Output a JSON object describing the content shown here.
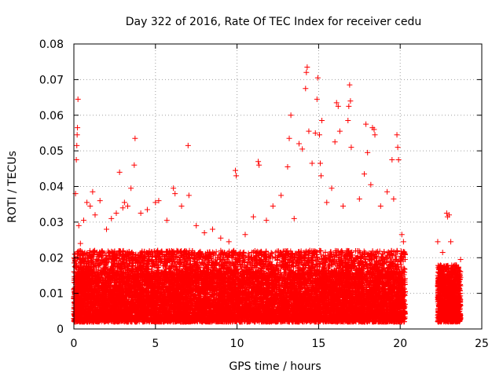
{
  "chart_data": {
    "type": "scatter",
    "title": "Day 322 of 2016, Rate Of TEC Index for receiver cedu",
    "xlabel": "GPS time / hours",
    "ylabel": "ROTI / TECUs",
    "xlim": [
      0,
      25
    ],
    "ylim": [
      0,
      0.08
    ],
    "xticks": [
      "0",
      "5",
      "10",
      "15",
      "20",
      "25"
    ],
    "yticks": [
      "0",
      "0.01",
      "0.02",
      "0.03",
      "0.04",
      "0.05",
      "0.06",
      "0.07",
      "0.08"
    ],
    "grid": true,
    "marker": "+",
    "color": "#ff0000",
    "series": [
      {
        "points": [
          [
            0.05,
            0.0095
          ],
          [
            0.1,
            0.038
          ],
          [
            0.15,
            0.0475
          ],
          [
            0.18,
            0.0515
          ],
          [
            0.2,
            0.0545
          ],
          [
            0.22,
            0.0565
          ],
          [
            0.25,
            0.0645
          ],
          [
            0.3,
            0.029
          ],
          [
            0.4,
            0.024
          ],
          [
            0.6,
            0.0305
          ],
          [
            0.8,
            0.0355
          ],
          [
            1.0,
            0.0345
          ],
          [
            1.15,
            0.0385
          ],
          [
            1.3,
            0.032
          ],
          [
            1.6,
            0.036
          ],
          [
            2.0,
            0.028
          ],
          [
            2.3,
            0.031
          ],
          [
            2.6,
            0.0325
          ],
          [
            2.8,
            0.044
          ],
          [
            3.0,
            0.034
          ],
          [
            3.1,
            0.0355
          ],
          [
            3.3,
            0.0345
          ],
          [
            3.5,
            0.0395
          ],
          [
            3.7,
            0.046
          ],
          [
            3.75,
            0.0535
          ],
          [
            4.1,
            0.0325
          ],
          [
            4.5,
            0.0335
          ],
          [
            5.0,
            0.0355
          ],
          [
            5.2,
            0.036
          ],
          [
            5.7,
            0.0305
          ],
          [
            6.1,
            0.0395
          ],
          [
            6.2,
            0.038
          ],
          [
            6.6,
            0.0345
          ],
          [
            7.0,
            0.0515
          ],
          [
            7.05,
            0.0375
          ],
          [
            7.5,
            0.029
          ],
          [
            8.0,
            0.027
          ],
          [
            8.5,
            0.028
          ],
          [
            9.0,
            0.0255
          ],
          [
            9.5,
            0.0245
          ],
          [
            9.9,
            0.0445
          ],
          [
            9.95,
            0.043
          ],
          [
            10.5,
            0.0265
          ],
          [
            11.0,
            0.0315
          ],
          [
            11.3,
            0.047
          ],
          [
            11.35,
            0.046
          ],
          [
            11.8,
            0.0305
          ],
          [
            12.2,
            0.0345
          ],
          [
            12.7,
            0.0375
          ],
          [
            13.1,
            0.0455
          ],
          [
            13.2,
            0.0535
          ],
          [
            13.3,
            0.06
          ],
          [
            13.5,
            0.031
          ],
          [
            13.8,
            0.052
          ],
          [
            14.0,
            0.0505
          ],
          [
            14.2,
            0.0675
          ],
          [
            14.25,
            0.072
          ],
          [
            14.3,
            0.0735
          ],
          [
            14.4,
            0.0555
          ],
          [
            14.6,
            0.0465
          ],
          [
            14.8,
            0.055
          ],
          [
            14.9,
            0.0645
          ],
          [
            14.95,
            0.0705
          ],
          [
            15.05,
            0.0545
          ],
          [
            15.1,
            0.0465
          ],
          [
            15.15,
            0.043
          ],
          [
            15.2,
            0.0585
          ],
          [
            15.5,
            0.0355
          ],
          [
            15.8,
            0.0395
          ],
          [
            16.0,
            0.0525
          ],
          [
            16.1,
            0.0635
          ],
          [
            16.2,
            0.0625
          ],
          [
            16.3,
            0.0555
          ],
          [
            16.5,
            0.0345
          ],
          [
            16.8,
            0.0585
          ],
          [
            16.85,
            0.0625
          ],
          [
            16.9,
            0.0685
          ],
          [
            16.95,
            0.064
          ],
          [
            17.0,
            0.051
          ],
          [
            17.5,
            0.0365
          ],
          [
            17.8,
            0.0435
          ],
          [
            17.9,
            0.0575
          ],
          [
            18.0,
            0.0495
          ],
          [
            18.2,
            0.0405
          ],
          [
            18.3,
            0.0565
          ],
          [
            18.4,
            0.056
          ],
          [
            18.45,
            0.0545
          ],
          [
            18.8,
            0.0345
          ],
          [
            19.2,
            0.0385
          ],
          [
            19.5,
            0.0475
          ],
          [
            19.6,
            0.0365
          ],
          [
            19.8,
            0.0545
          ],
          [
            19.85,
            0.051
          ],
          [
            19.9,
            0.0475
          ],
          [
            20.1,
            0.0265
          ],
          [
            20.2,
            0.0245
          ],
          [
            22.3,
            0.0245
          ],
          [
            22.6,
            0.0215
          ],
          [
            22.85,
            0.0325
          ],
          [
            22.9,
            0.0315
          ],
          [
            23.0,
            0.032
          ],
          [
            23.1,
            0.0245
          ],
          [
            23.4,
            0.0175
          ],
          [
            23.7,
            0.0195
          ]
        ]
      }
    ],
    "dense_band": {
      "segments": [
        {
          "x_range": [
            0.0,
            20.3
          ],
          "y_range": [
            0.002,
            0.016
          ],
          "upper_tail": 0.022
        },
        {
          "x_range": [
            22.3,
            23.7
          ],
          "y_range": [
            0.002,
            0.014
          ],
          "upper_tail": 0.018
        }
      ]
    }
  }
}
